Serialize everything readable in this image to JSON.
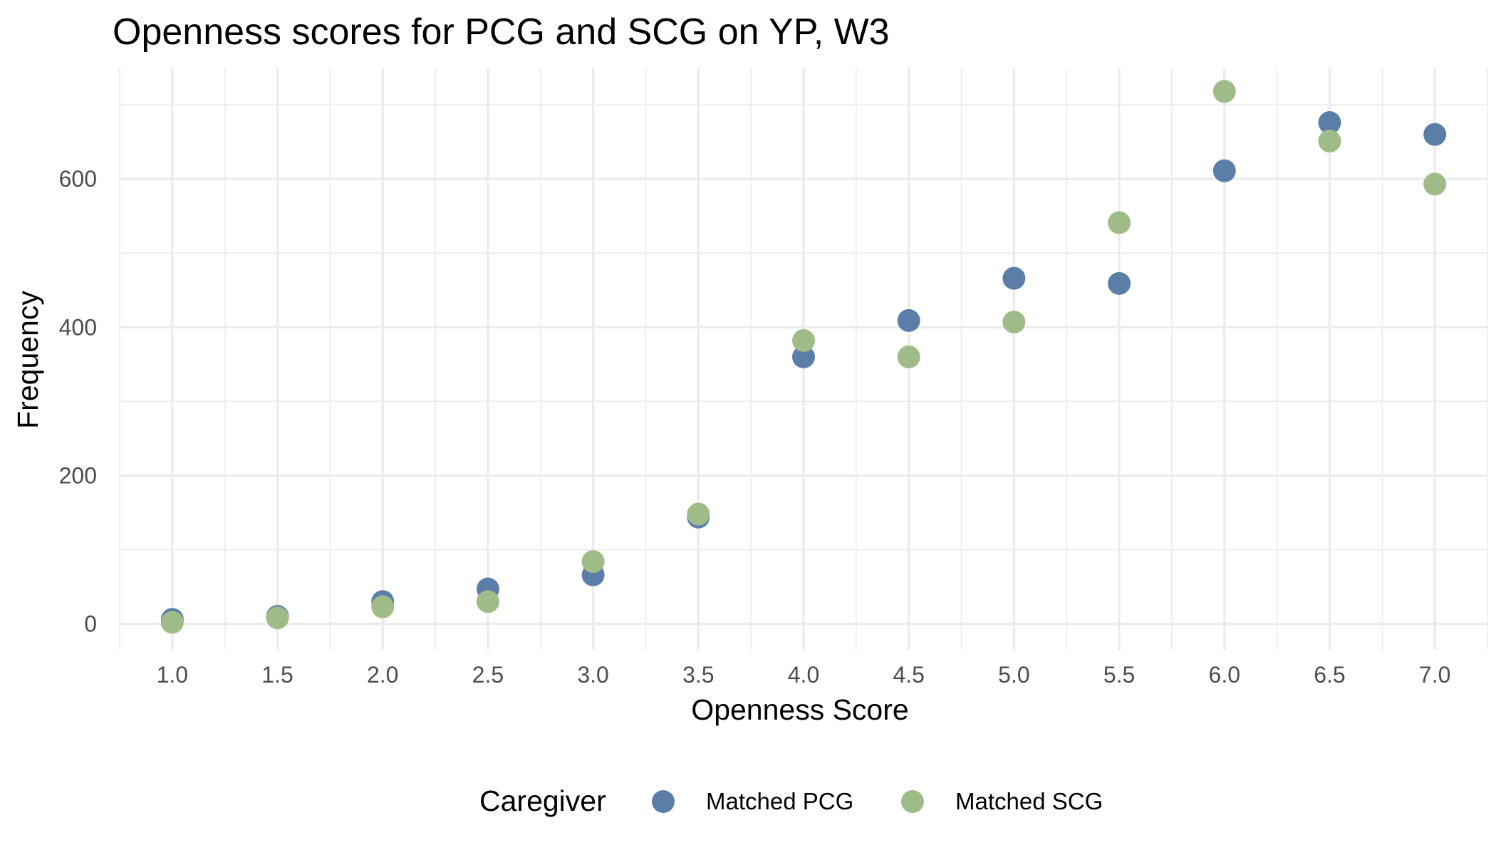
{
  "chart_data": {
    "type": "scatter",
    "title": "Openness scores for PCG and SCG on YP, W3",
    "xlabel": "Openness Score",
    "ylabel": "Frequency",
    "x": [
      1.0,
      1.5,
      2.0,
      2.5,
      3.0,
      3.5,
      4.0,
      4.5,
      5.0,
      5.5,
      6.0,
      6.5,
      7.0
    ],
    "x_tick_labels": [
      "1.0",
      "1.5",
      "2.0",
      "2.5",
      "3.0",
      "3.5",
      "4.0",
      "4.5",
      "5.0",
      "5.5",
      "6.0",
      "6.5",
      "7.0"
    ],
    "y_ticks": [
      0,
      200,
      400,
      600
    ],
    "y_tick_labels": [
      "0",
      "200",
      "400",
      "600"
    ],
    "xlim": [
      0.75,
      7.25
    ],
    "ylim": [
      -35,
      750
    ],
    "grid": true,
    "legend": {
      "title": "Caregiver",
      "position": "bottom"
    },
    "series": [
      {
        "name": "Matched PCG",
        "color": "#5b7ea9",
        "values": [
          6,
          10,
          30,
          47,
          66,
          144,
          360,
          409,
          466,
          459,
          611,
          676,
          660
        ]
      },
      {
        "name": "Matched SCG",
        "color": "#9fbc88",
        "values": [
          2,
          8,
          23,
          30,
          84,
          148,
          382,
          360,
          407,
          541,
          718,
          651,
          593
        ]
      }
    ]
  }
}
